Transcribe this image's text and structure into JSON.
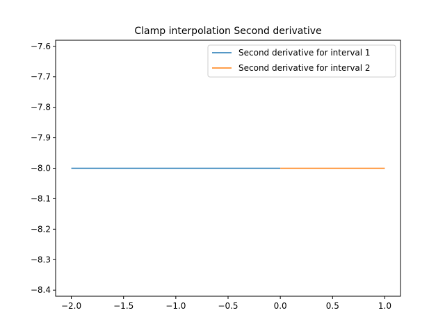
{
  "chart_data": {
    "type": "line",
    "title": "Clamp interpolation Second derivative",
    "xlabel": "",
    "ylabel": "",
    "xlim": [
      -2.15,
      1.15
    ],
    "ylim": [
      -8.42,
      -7.58
    ],
    "xticks": [
      -2.0,
      -1.5,
      -1.0,
      -0.5,
      0.0,
      0.5,
      1.0
    ],
    "xtick_labels": [
      "−2.0",
      "−1.5",
      "−1.0",
      "−0.5",
      "0.0",
      "0.5",
      "1.0"
    ],
    "yticks": [
      -7.6,
      -7.7,
      -7.8,
      -7.9,
      -8.0,
      -8.1,
      -8.2,
      -8.3,
      -8.4
    ],
    "ytick_labels": [
      "−7.6",
      "−7.7",
      "−7.8",
      "−7.9",
      "−8.0",
      "−8.1",
      "−8.2",
      "−8.3",
      "−8.4"
    ],
    "grid": false,
    "legend_position": "top-right",
    "series": [
      {
        "name": "Second derivative for interval 1",
        "color": "#1f77b4",
        "x": [
          -2.0,
          0.0
        ],
        "y": [
          -8.0,
          -8.0
        ]
      },
      {
        "name": "Second derivative for interval 2",
        "color": "#ff7f0e",
        "x": [
          0.0,
          1.0
        ],
        "y": [
          -8.0,
          -8.0
        ]
      }
    ]
  }
}
